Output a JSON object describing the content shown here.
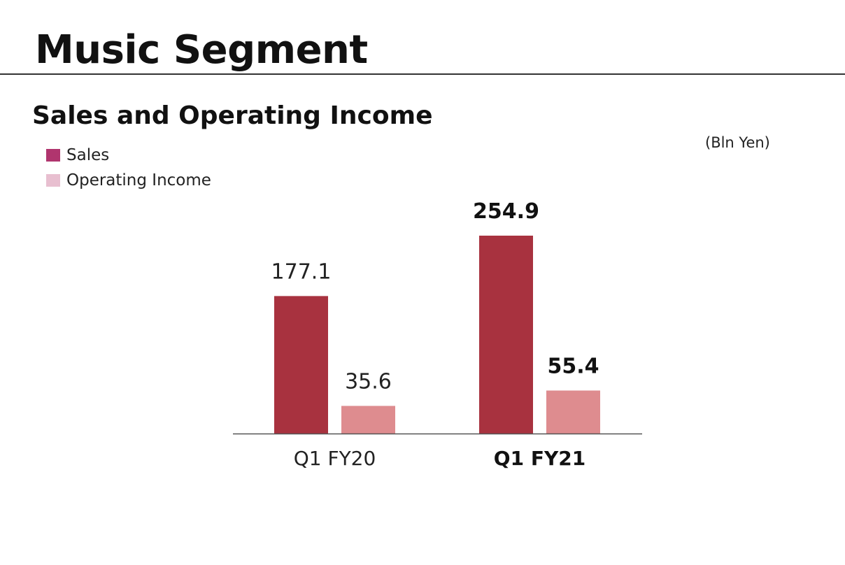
{
  "page": {
    "title": "Music Segment"
  },
  "chart_data": {
    "type": "bar",
    "title": "Sales and Operating Income",
    "unit_label": "(Bln Yen)",
    "categories": [
      "Q1 FY20",
      "Q1 FY21"
    ],
    "highlight_category": "Q1 FY21",
    "legend": [
      {
        "name": "Sales",
        "color": "#b0356e"
      },
      {
        "name": "Operating Income",
        "color": "#e8bfd0"
      }
    ],
    "series": [
      {
        "name": "Sales",
        "values": [
          177.1,
          254.9
        ],
        "labels": [
          "177.1",
          "254.9"
        ],
        "color": "#a8323f"
      },
      {
        "name": "Operating Income",
        "values": [
          35.6,
          55.4
        ],
        "labels": [
          "35.6",
          "55.4"
        ],
        "color": "#de8c8f"
      }
    ],
    "ylim": [
      0,
      254.9
    ],
    "grid": false,
    "legend_position": "top-left"
  }
}
